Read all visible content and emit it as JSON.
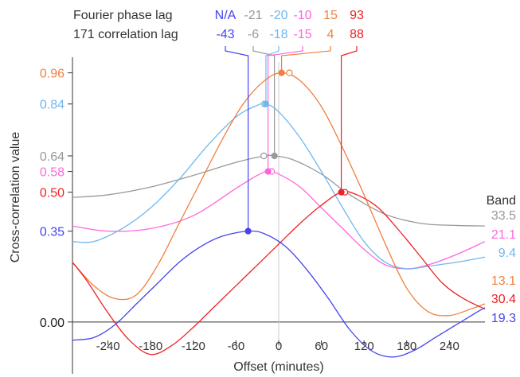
{
  "chart_data": {
    "type": "line",
    "xlabel": "Offset (minutes)",
    "ylabel": "Cross-correlation value",
    "xlim": [
      -290,
      290
    ],
    "ylim": [
      -0.12,
      1.02
    ],
    "x_ticks": [
      -240,
      -180,
      -120,
      -60,
      0,
      60,
      120,
      180,
      240
    ],
    "y_ticks": [
      {
        "value": 0.96,
        "label": "0.96",
        "color": "#f08040"
      },
      {
        "value": 0.84,
        "label": "0.84",
        "color": "#70b8ee"
      },
      {
        "value": 0.64,
        "label": "0.64",
        "color": "#999999"
      },
      {
        "value": 0.58,
        "label": "0.58",
        "color": "#ff66dd"
      },
      {
        "value": 0.5,
        "label": "0.50",
        "color": "#ee2222"
      },
      {
        "value": 0.35,
        "label": "0.35",
        "color": "#4444ee"
      },
      {
        "value": 0.0,
        "label": "0.00",
        "color": "#222222"
      }
    ],
    "legend_title": "Band",
    "header": {
      "row1_label": "Fourier phase lag",
      "row2_label": "171 correlation lag"
    },
    "series": [
      {
        "name": "33.5",
        "color": "#999999",
        "correlation_lag": "-6",
        "phase_lag": "-21",
        "peak_x": -6,
        "peak_y": 0.64,
        "phase_x": -21,
        "points": [
          [
            -290,
            0.48
          ],
          [
            -240,
            0.49
          ],
          [
            -180,
            0.52
          ],
          [
            -120,
            0.565
          ],
          [
            -60,
            0.615
          ],
          [
            -20,
            0.64
          ],
          [
            -6,
            0.64
          ],
          [
            20,
            0.625
          ],
          [
            60,
            0.57
          ],
          [
            100,
            0.49
          ],
          [
            150,
            0.415
          ],
          [
            200,
            0.38
          ],
          [
            250,
            0.372
          ],
          [
            290,
            0.37
          ]
        ]
      },
      {
        "name": "21.1",
        "color": "#ff66dd",
        "correlation_lag": "-15",
        "phase_lag": "-10",
        "peak_x": -15,
        "peak_y": 0.58,
        "phase_x": -10,
        "points": [
          [
            -290,
            0.37
          ],
          [
            -240,
            0.35
          ],
          [
            -180,
            0.36
          ],
          [
            -120,
            0.41
          ],
          [
            -60,
            0.515
          ],
          [
            -30,
            0.565
          ],
          [
            -15,
            0.58
          ],
          [
            0,
            0.57
          ],
          [
            30,
            0.52
          ],
          [
            60,
            0.44
          ],
          [
            90,
            0.36
          ],
          [
            120,
            0.28
          ],
          [
            150,
            0.22
          ],
          [
            180,
            0.205
          ],
          [
            210,
            0.22
          ],
          [
            250,
            0.26
          ],
          [
            290,
            0.31
          ]
        ]
      },
      {
        "name": "9.4",
        "color": "#70b8ee",
        "correlation_lag": "-18",
        "phase_lag": "-20",
        "peak_x": -18,
        "peak_y": 0.84,
        "phase_x": -20,
        "points": [
          [
            -290,
            0.31
          ],
          [
            -260,
            0.31
          ],
          [
            -220,
            0.36
          ],
          [
            -180,
            0.44
          ],
          [
            -140,
            0.55
          ],
          [
            -100,
            0.68
          ],
          [
            -60,
            0.79
          ],
          [
            -30,
            0.835
          ],
          [
            -18,
            0.84
          ],
          [
            0,
            0.81
          ],
          [
            30,
            0.71
          ],
          [
            60,
            0.58
          ],
          [
            90,
            0.44
          ],
          [
            120,
            0.31
          ],
          [
            150,
            0.23
          ],
          [
            180,
            0.205
          ],
          [
            210,
            0.215
          ],
          [
            250,
            0.23
          ],
          [
            290,
            0.25
          ]
        ]
      },
      {
        "name": "13.1",
        "color": "#f08040",
        "correlation_lag": "4",
        "phase_lag": "15",
        "peak_x": 4,
        "peak_y": 0.96,
        "phase_x": 15,
        "points": [
          [
            -290,
            0.23
          ],
          [
            -260,
            0.14
          ],
          [
            -230,
            0.09
          ],
          [
            -200,
            0.105
          ],
          [
            -170,
            0.22
          ],
          [
            -140,
            0.38
          ],
          [
            -110,
            0.54
          ],
          [
            -80,
            0.7
          ],
          [
            -50,
            0.84
          ],
          [
            -20,
            0.93
          ],
          [
            4,
            0.96
          ],
          [
            30,
            0.93
          ],
          [
            60,
            0.83
          ],
          [
            90,
            0.67
          ],
          [
            120,
            0.49
          ],
          [
            150,
            0.3
          ],
          [
            180,
            0.13
          ],
          [
            210,
            0.04
          ],
          [
            240,
            0.025
          ],
          [
            270,
            0.05
          ],
          [
            290,
            0.07
          ]
        ]
      },
      {
        "name": "30.4",
        "color": "#ee2222",
        "correlation_lag": "88",
        "phase_lag": "93",
        "peak_x": 88,
        "peak_y": 0.5,
        "phase_x": 93,
        "points": [
          [
            -290,
            0.23
          ],
          [
            -270,
            0.16
          ],
          [
            -240,
            0.035
          ],
          [
            -210,
            -0.07
          ],
          [
            -180,
            -0.125
          ],
          [
            -150,
            -0.09
          ],
          [
            -120,
            -0.02
          ],
          [
            -90,
            0.06
          ],
          [
            -60,
            0.14
          ],
          [
            -30,
            0.22
          ],
          [
            0,
            0.3
          ],
          [
            30,
            0.38
          ],
          [
            60,
            0.45
          ],
          [
            88,
            0.5
          ],
          [
            110,
            0.49
          ],
          [
            140,
            0.44
          ],
          [
            170,
            0.35
          ],
          [
            200,
            0.25
          ],
          [
            230,
            0.15
          ],
          [
            260,
            0.09
          ],
          [
            290,
            0.05
          ]
        ]
      },
      {
        "name": "19.3",
        "color": "#4444ee",
        "correlation_lag": "-43",
        "phase_lag": "N/A",
        "peak_x": -43,
        "peak_y": 0.35,
        "phase_x": null,
        "points": [
          [
            -290,
            -0.07
          ],
          [
            -260,
            -0.06
          ],
          [
            -230,
            -0.01
          ],
          [
            -200,
            0.07
          ],
          [
            -170,
            0.15
          ],
          [
            -140,
            0.23
          ],
          [
            -110,
            0.29
          ],
          [
            -80,
            0.33
          ],
          [
            -43,
            0.35
          ],
          [
            -20,
            0.34
          ],
          [
            10,
            0.29
          ],
          [
            40,
            0.2
          ],
          [
            70,
            0.09
          ],
          [
            100,
            -0.03
          ],
          [
            130,
            -0.11
          ],
          [
            160,
            -0.135
          ],
          [
            190,
            -0.11
          ],
          [
            220,
            -0.06
          ],
          [
            250,
            -0.01
          ],
          [
            280,
            0.04
          ],
          [
            290,
            0.055
          ]
        ]
      }
    ]
  }
}
